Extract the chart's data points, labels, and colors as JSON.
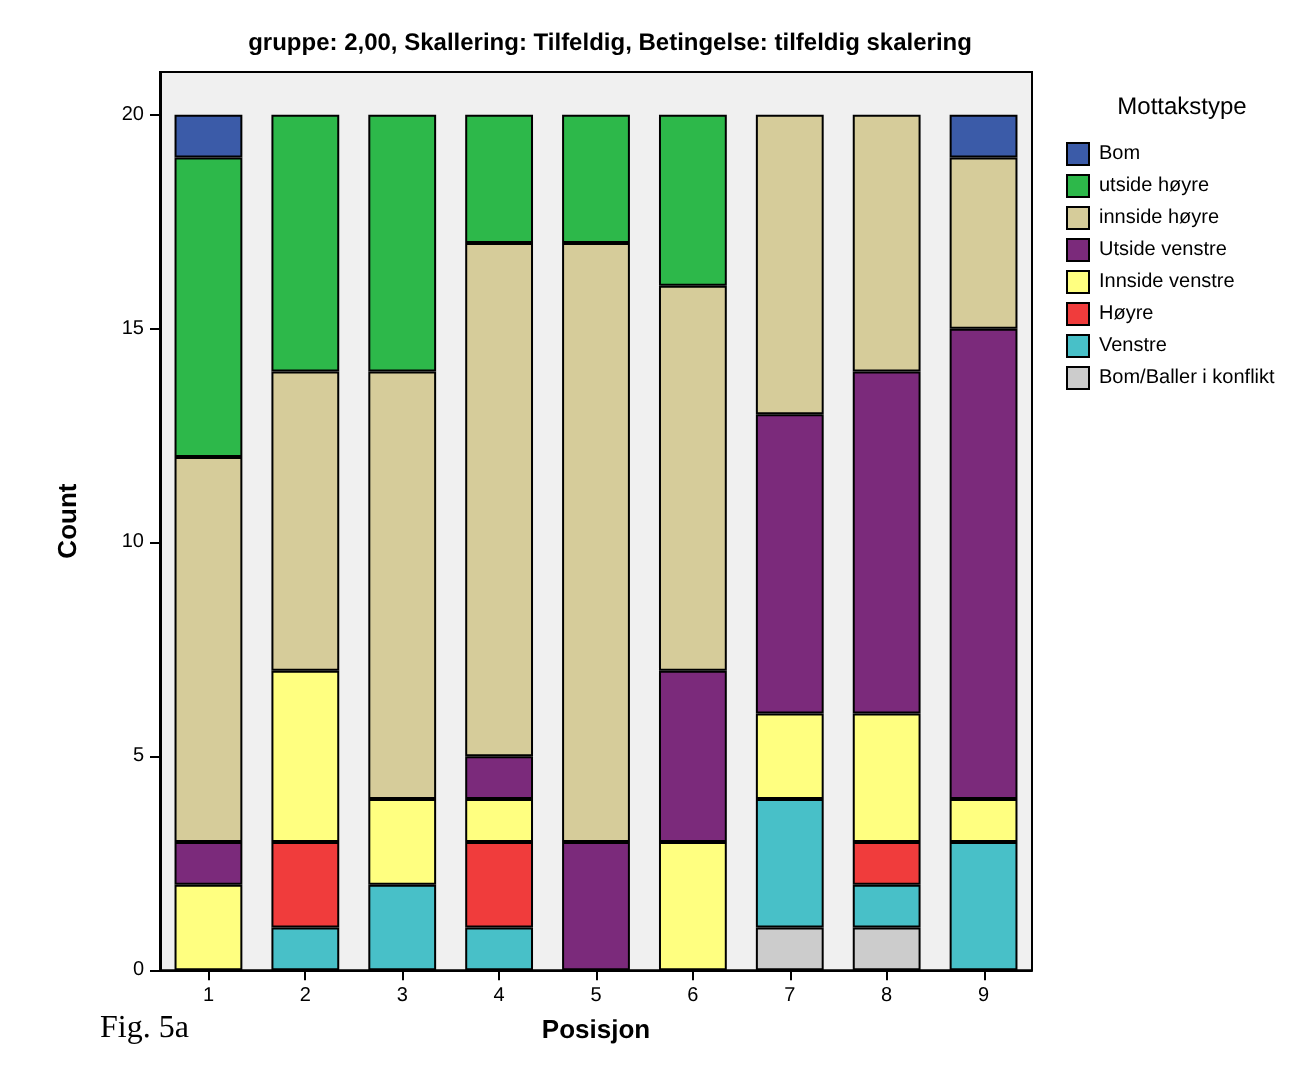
{
  "chart_data": {
    "type": "bar",
    "title": "gruppe: 2,00, Skallering: Tilfeldig, Betingelse: tilfeldig skalering",
    "xlabel": "Posisjon",
    "ylabel": "Count",
    "legend_title": "Mottakstype",
    "categories": [
      "1",
      "2",
      "3",
      "4",
      "5",
      "6",
      "7",
      "8",
      "9"
    ],
    "stacked": true,
    "ylim": [
      0,
      21
    ],
    "yticks": [
      0,
      5,
      10,
      15,
      20
    ],
    "grid": false,
    "legend": "top right",
    "annotations": [
      "Fig. 5a"
    ],
    "series": [
      {
        "name": "Bom/Baller i konflikt",
        "color": "#cccccc",
        "values": [
          null,
          null,
          null,
          null,
          null,
          null,
          1,
          1,
          null
        ]
      },
      {
        "name": "Venstre",
        "color": "#48c0c8",
        "values": [
          null,
          1,
          2,
          1,
          null,
          null,
          3,
          1,
          3
        ]
      },
      {
        "name": "Høyre",
        "color": "#f03c3c",
        "values": [
          null,
          2,
          null,
          2,
          null,
          null,
          null,
          1,
          null
        ]
      },
      {
        "name": "Innside venstre",
        "color": "#ffff80",
        "values": [
          2,
          4,
          2,
          1,
          null,
          3,
          2,
          3,
          1
        ]
      },
      {
        "name": "Utside venstre",
        "color": "#7b2a7b",
        "values": [
          1,
          null,
          null,
          1,
          3,
          4,
          7,
          8,
          11
        ]
      },
      {
        "name": "innside høyre",
        "color": "#d6cc9a",
        "values": [
          9,
          7,
          10,
          12,
          14,
          9,
          7,
          6,
          4
        ]
      },
      {
        "name": "utside høyre",
        "color": "#2db84a",
        "values": [
          7,
          6,
          6,
          3,
          3,
          4,
          null,
          null,
          null
        ]
      },
      {
        "name": "Bom",
        "color": "#3b5ba8",
        "values": [
          1,
          null,
          null,
          null,
          null,
          null,
          null,
          null,
          1
        ]
      }
    ]
  }
}
